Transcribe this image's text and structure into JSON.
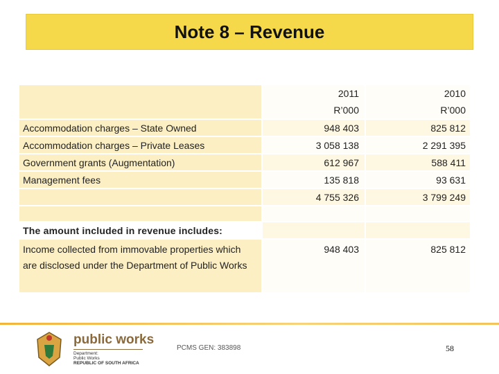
{
  "header": {
    "title": "Note 8 – Revenue"
  },
  "table": {
    "columns": [
      {
        "year": "2011",
        "unit": "R’000"
      },
      {
        "year": "2010",
        "unit": "R’000"
      }
    ],
    "rows": [
      {
        "label": "Accommodation charges – State Owned",
        "values": [
          "948 403",
          "825 812"
        ]
      },
      {
        "label": "Accommodation charges – Private Leases",
        "values": [
          "3 058 138",
          "2 291 395"
        ]
      },
      {
        "label": "Government grants (Augmentation)",
        "values": [
          "612 967",
          "588 411"
        ]
      },
      {
        "label": "Management fees",
        "values": [
          "135 818",
          "93 631"
        ]
      }
    ],
    "total": [
      "4 755 326",
      "3 799 249"
    ],
    "section_note": "The amount included in revenue includes:",
    "detail": {
      "label": "Income collected from immovable properties which are disclosed under the Department of Public Works",
      "values": [
        "948 403",
        "825 812"
      ]
    }
  },
  "footer": {
    "logo_name": "public works",
    "logo_sub": [
      "Department:",
      "Public Works",
      "REPUBLIC OF SOUTH AFRICA"
    ],
    "reference": "PCMS GEN: 383898",
    "page": "58"
  }
}
